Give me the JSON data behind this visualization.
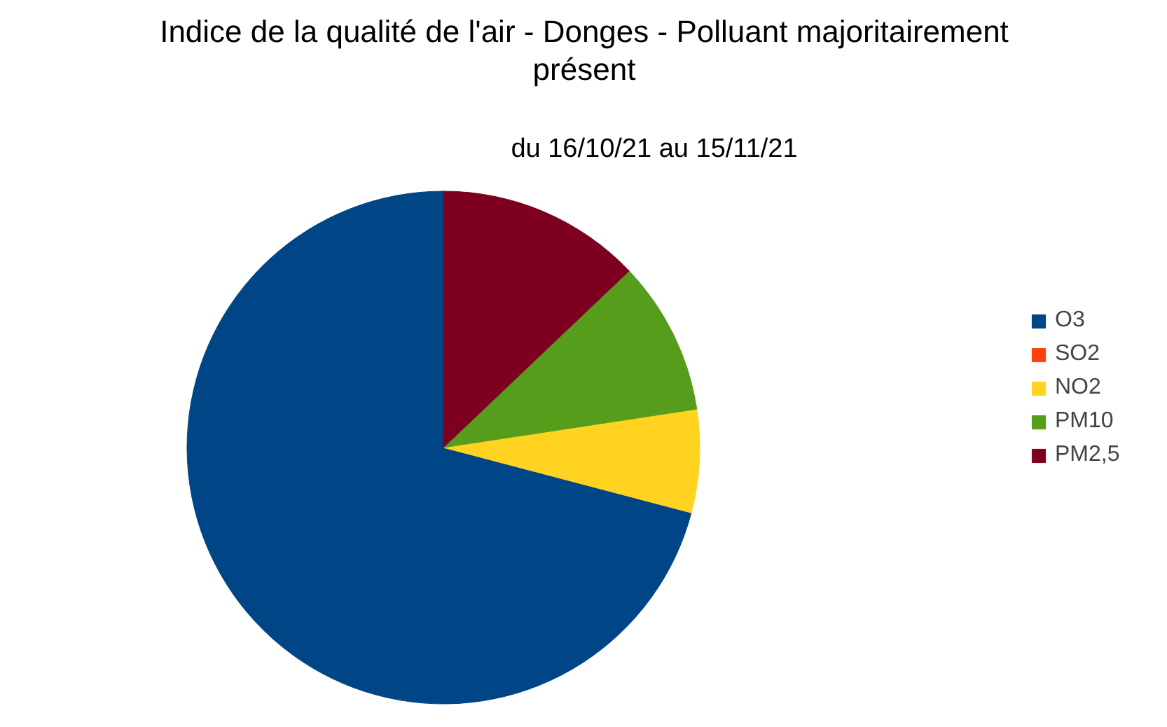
{
  "chart_data": {
    "type": "pie",
    "title": "Indice de la qualité de l'air - Donges - Polluant majoritairement présent",
    "subtitle": "du 16/10/21 au 15/11/21",
    "categories": [
      "O3",
      "SO2",
      "NO2",
      "PM10",
      "PM2,5"
    ],
    "values": [
      70.9,
      0,
      6.5,
      9.7,
      12.9
    ],
    "colors": [
      "#004586",
      "#ff420e",
      "#ffd320",
      "#579d1c",
      "#7e0021"
    ],
    "legend": "right"
  }
}
